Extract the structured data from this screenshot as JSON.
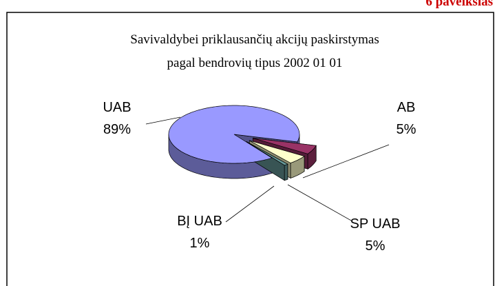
{
  "chart_data": {
    "type": "pie",
    "figure_label": "6 paveikslas",
    "title": [
      "Savivaldybei priklausančių akcijų paskirstymas",
      "pagal bendrovių  tipus 2002 01 01"
    ],
    "categories": [
      "UAB",
      "AB",
      "SP UAB",
      "BĮ UAB"
    ],
    "values": [
      89,
      5,
      5,
      1
    ],
    "value_labels": [
      "89%",
      "5%",
      "5%",
      "1%"
    ],
    "colors": [
      "#9999ff",
      "#993366",
      "#ffffcc",
      "#669999"
    ]
  }
}
